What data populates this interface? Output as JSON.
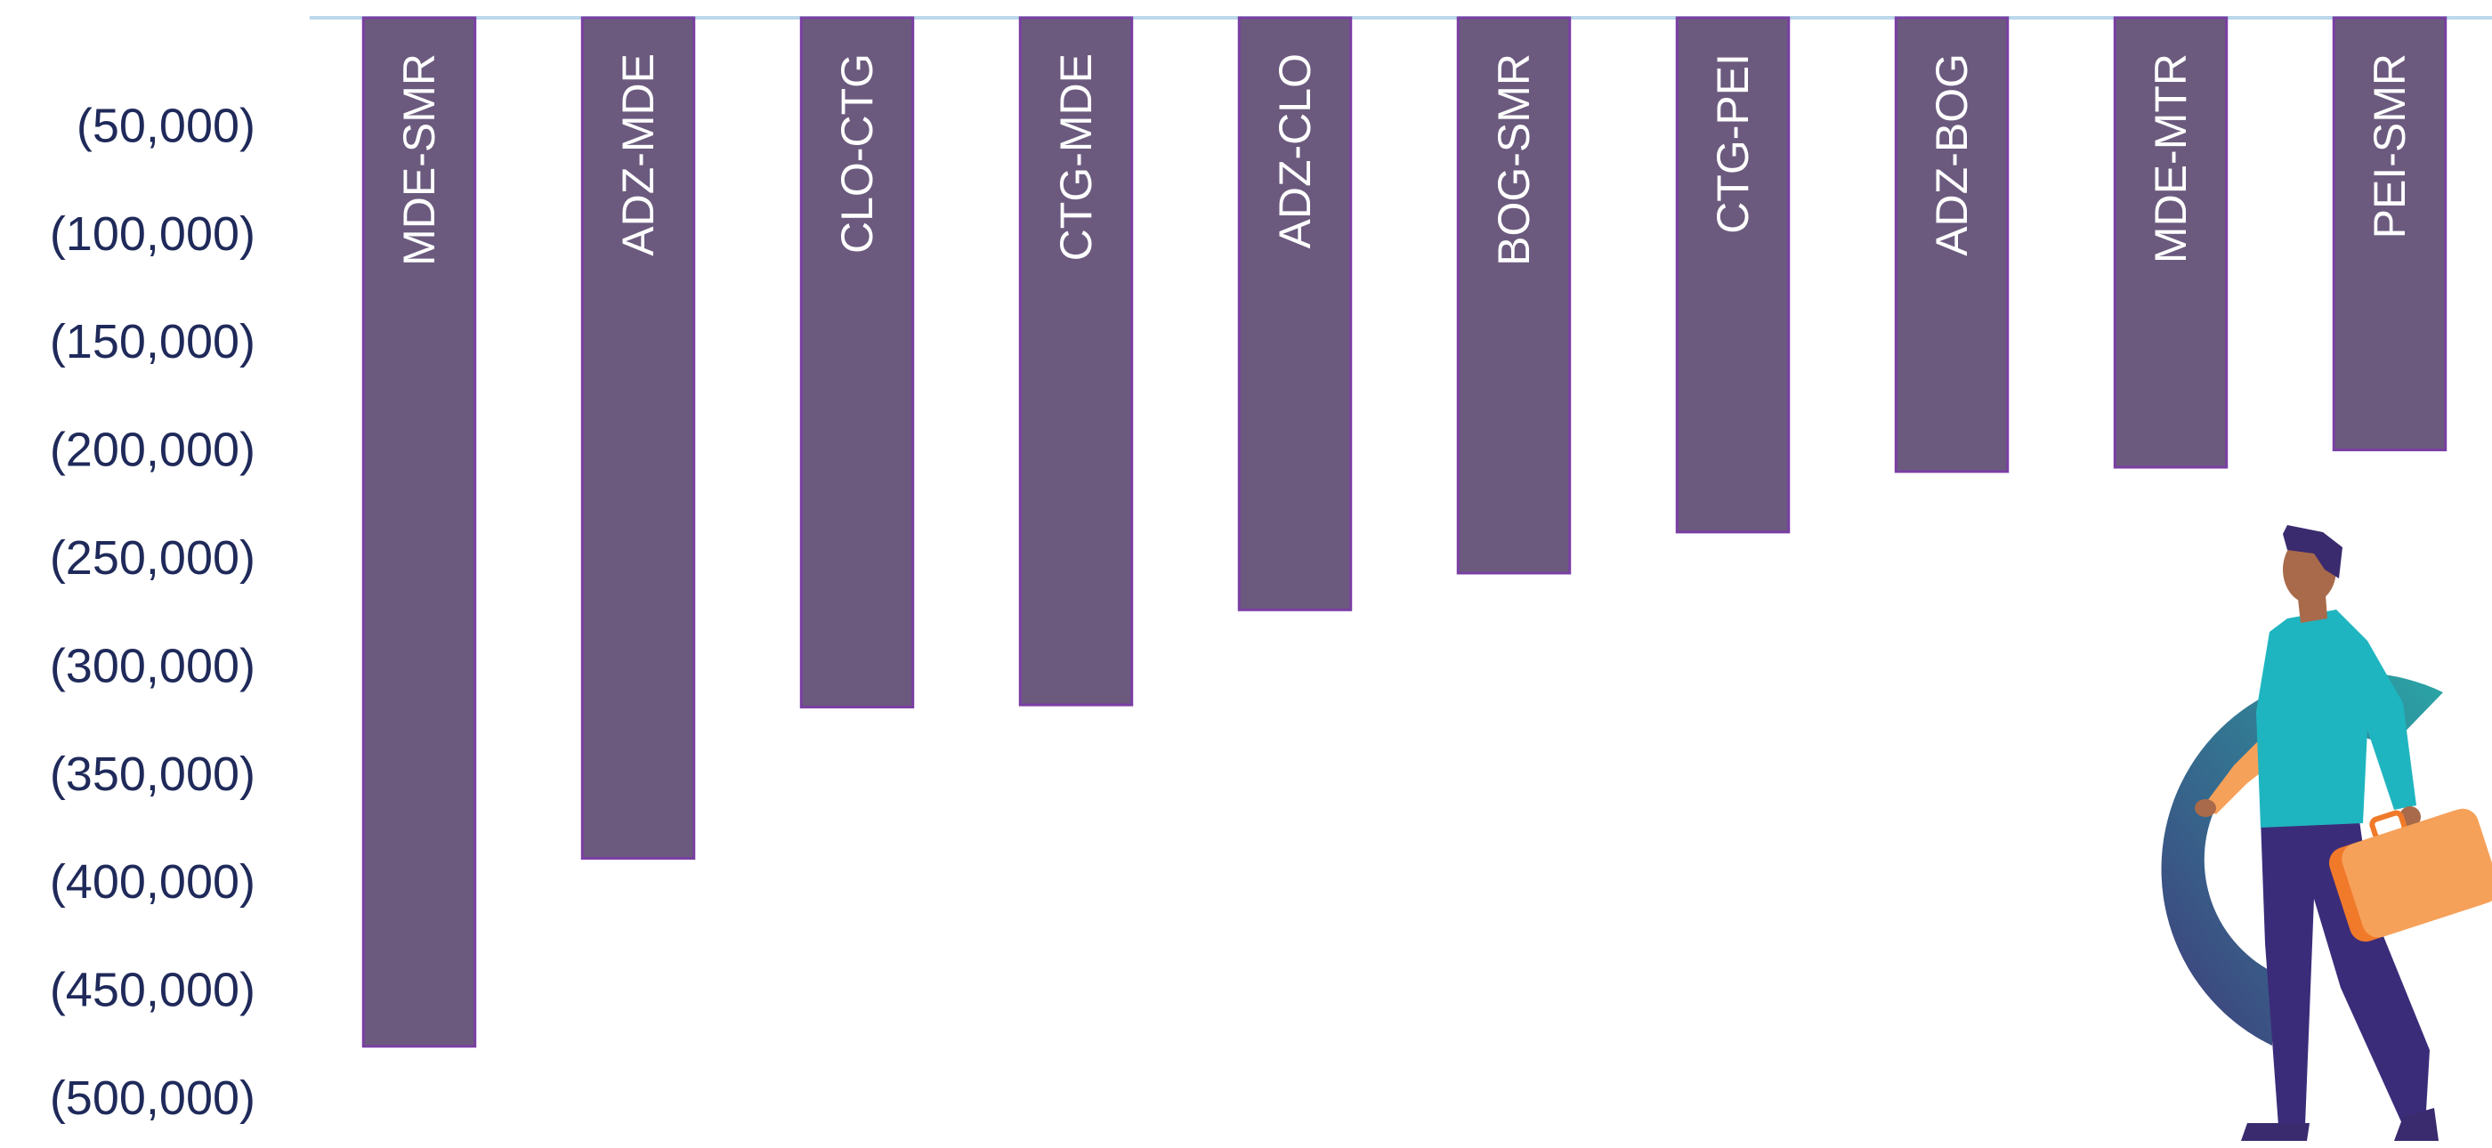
{
  "chart_data": {
    "type": "bar",
    "orientation": "vertical",
    "categories": [
      "MDE-SMR",
      "ADZ-MDE",
      "CLO-CTG",
      "CTG-MDE",
      "ADZ-CLO",
      "BOG-SMR",
      "CTG-PEI",
      "ADZ-BOG",
      "MDE-MTR",
      "PEI-SMR"
    ],
    "values": [
      -476000,
      -389000,
      -319000,
      -318000,
      -274000,
      -257000,
      -238000,
      -210000,
      -208000,
      -200000
    ],
    "y_ticks": [
      {
        "value": -50000,
        "label": "(50,000)"
      },
      {
        "value": -100000,
        "label": "(100,000)"
      },
      {
        "value": -150000,
        "label": "(150,000)"
      },
      {
        "value": -200000,
        "label": "(200,000)"
      },
      {
        "value": -250000,
        "label": "(250,000)"
      },
      {
        "value": -300000,
        "label": "(300,000)"
      },
      {
        "value": -350000,
        "label": "(350,000)"
      },
      {
        "value": -400000,
        "label": "(400,000)"
      },
      {
        "value": -450000,
        "label": "(450,000)"
      },
      {
        "value": -500000,
        "label": "(500,000)"
      }
    ],
    "ylim": [
      -500000,
      0
    ],
    "grid": false,
    "legend": "none",
    "category_label_placement": "inside-bar-rotated",
    "colors": {
      "bar_fill": "#6b5a7e",
      "bar_stroke": "#7a3fa3",
      "axis_line": "#bcd8ea",
      "tick_text": "#1f2a5a",
      "category_text": "#ffffff"
    }
  },
  "illustration": {
    "name": "traveler-with-suitcase",
    "colors": {
      "ring_start": "#3f3b7a",
      "ring_end": "#2aa6a6",
      "shirt": "#1fb5c0",
      "pants": "#3b2c7a",
      "skin": "#a86a4a",
      "hair": "#3a2a6e",
      "suitcase": "#f6a15a",
      "suitcase_dark": "#f07a2a"
    }
  }
}
